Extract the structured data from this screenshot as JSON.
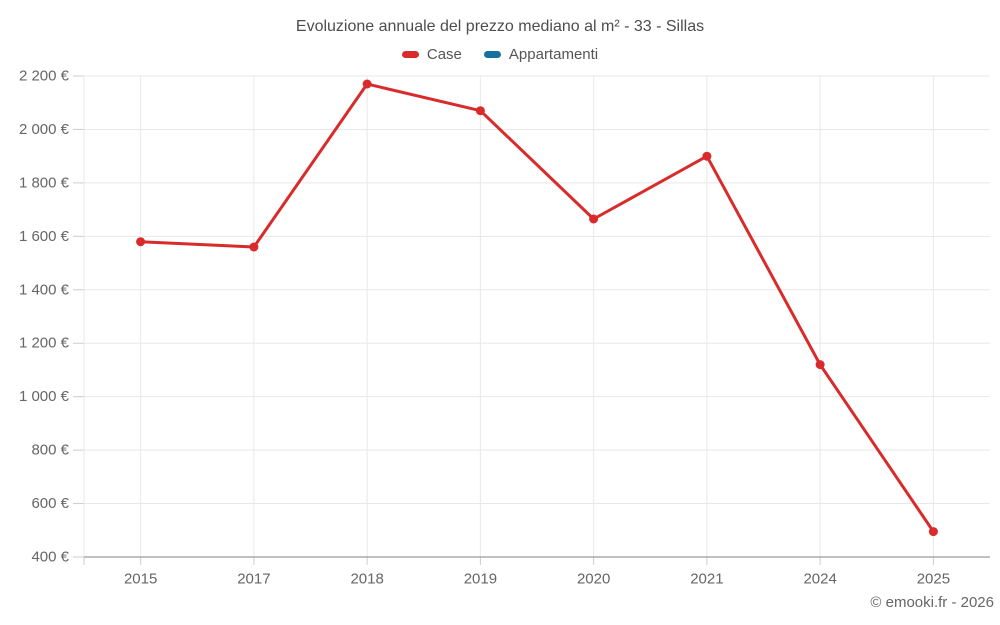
{
  "page": {
    "credit": "© emooki.fr - 2026"
  },
  "chart_data": {
    "type": "line",
    "title": "Evoluzione annuale del prezzo mediano al m² - 33 - Sillas",
    "categories": [
      "2015",
      "2017",
      "2018",
      "2019",
      "2020",
      "2021",
      "2024",
      "2025"
    ],
    "series": [
      {
        "name": "Case",
        "color": "#d92b2b",
        "values": [
          1580,
          1560,
          2170,
          2070,
          1665,
          1900,
          1120,
          495
        ]
      },
      {
        "name": "Appartamenti",
        "color": "#17719f",
        "values": []
      }
    ],
    "xlabel": "",
    "ylabel": "",
    "ylim": [
      400,
      2200
    ],
    "ytick_step": 200,
    "ytick_labels": [
      "400 €",
      "600 €",
      "800 €",
      "1 000 €",
      "1 200 €",
      "1 400 €",
      "1 600 €",
      "1 800 €",
      "2 000 €",
      "2 200 €"
    ],
    "grid": true,
    "legend_position": "top",
    "colors": {
      "grid": "#e8e8e8",
      "axis": "#9b9b9b",
      "tick": "#cccccc",
      "title_text": "#4d4d4d",
      "label_text": "#666666"
    }
  }
}
